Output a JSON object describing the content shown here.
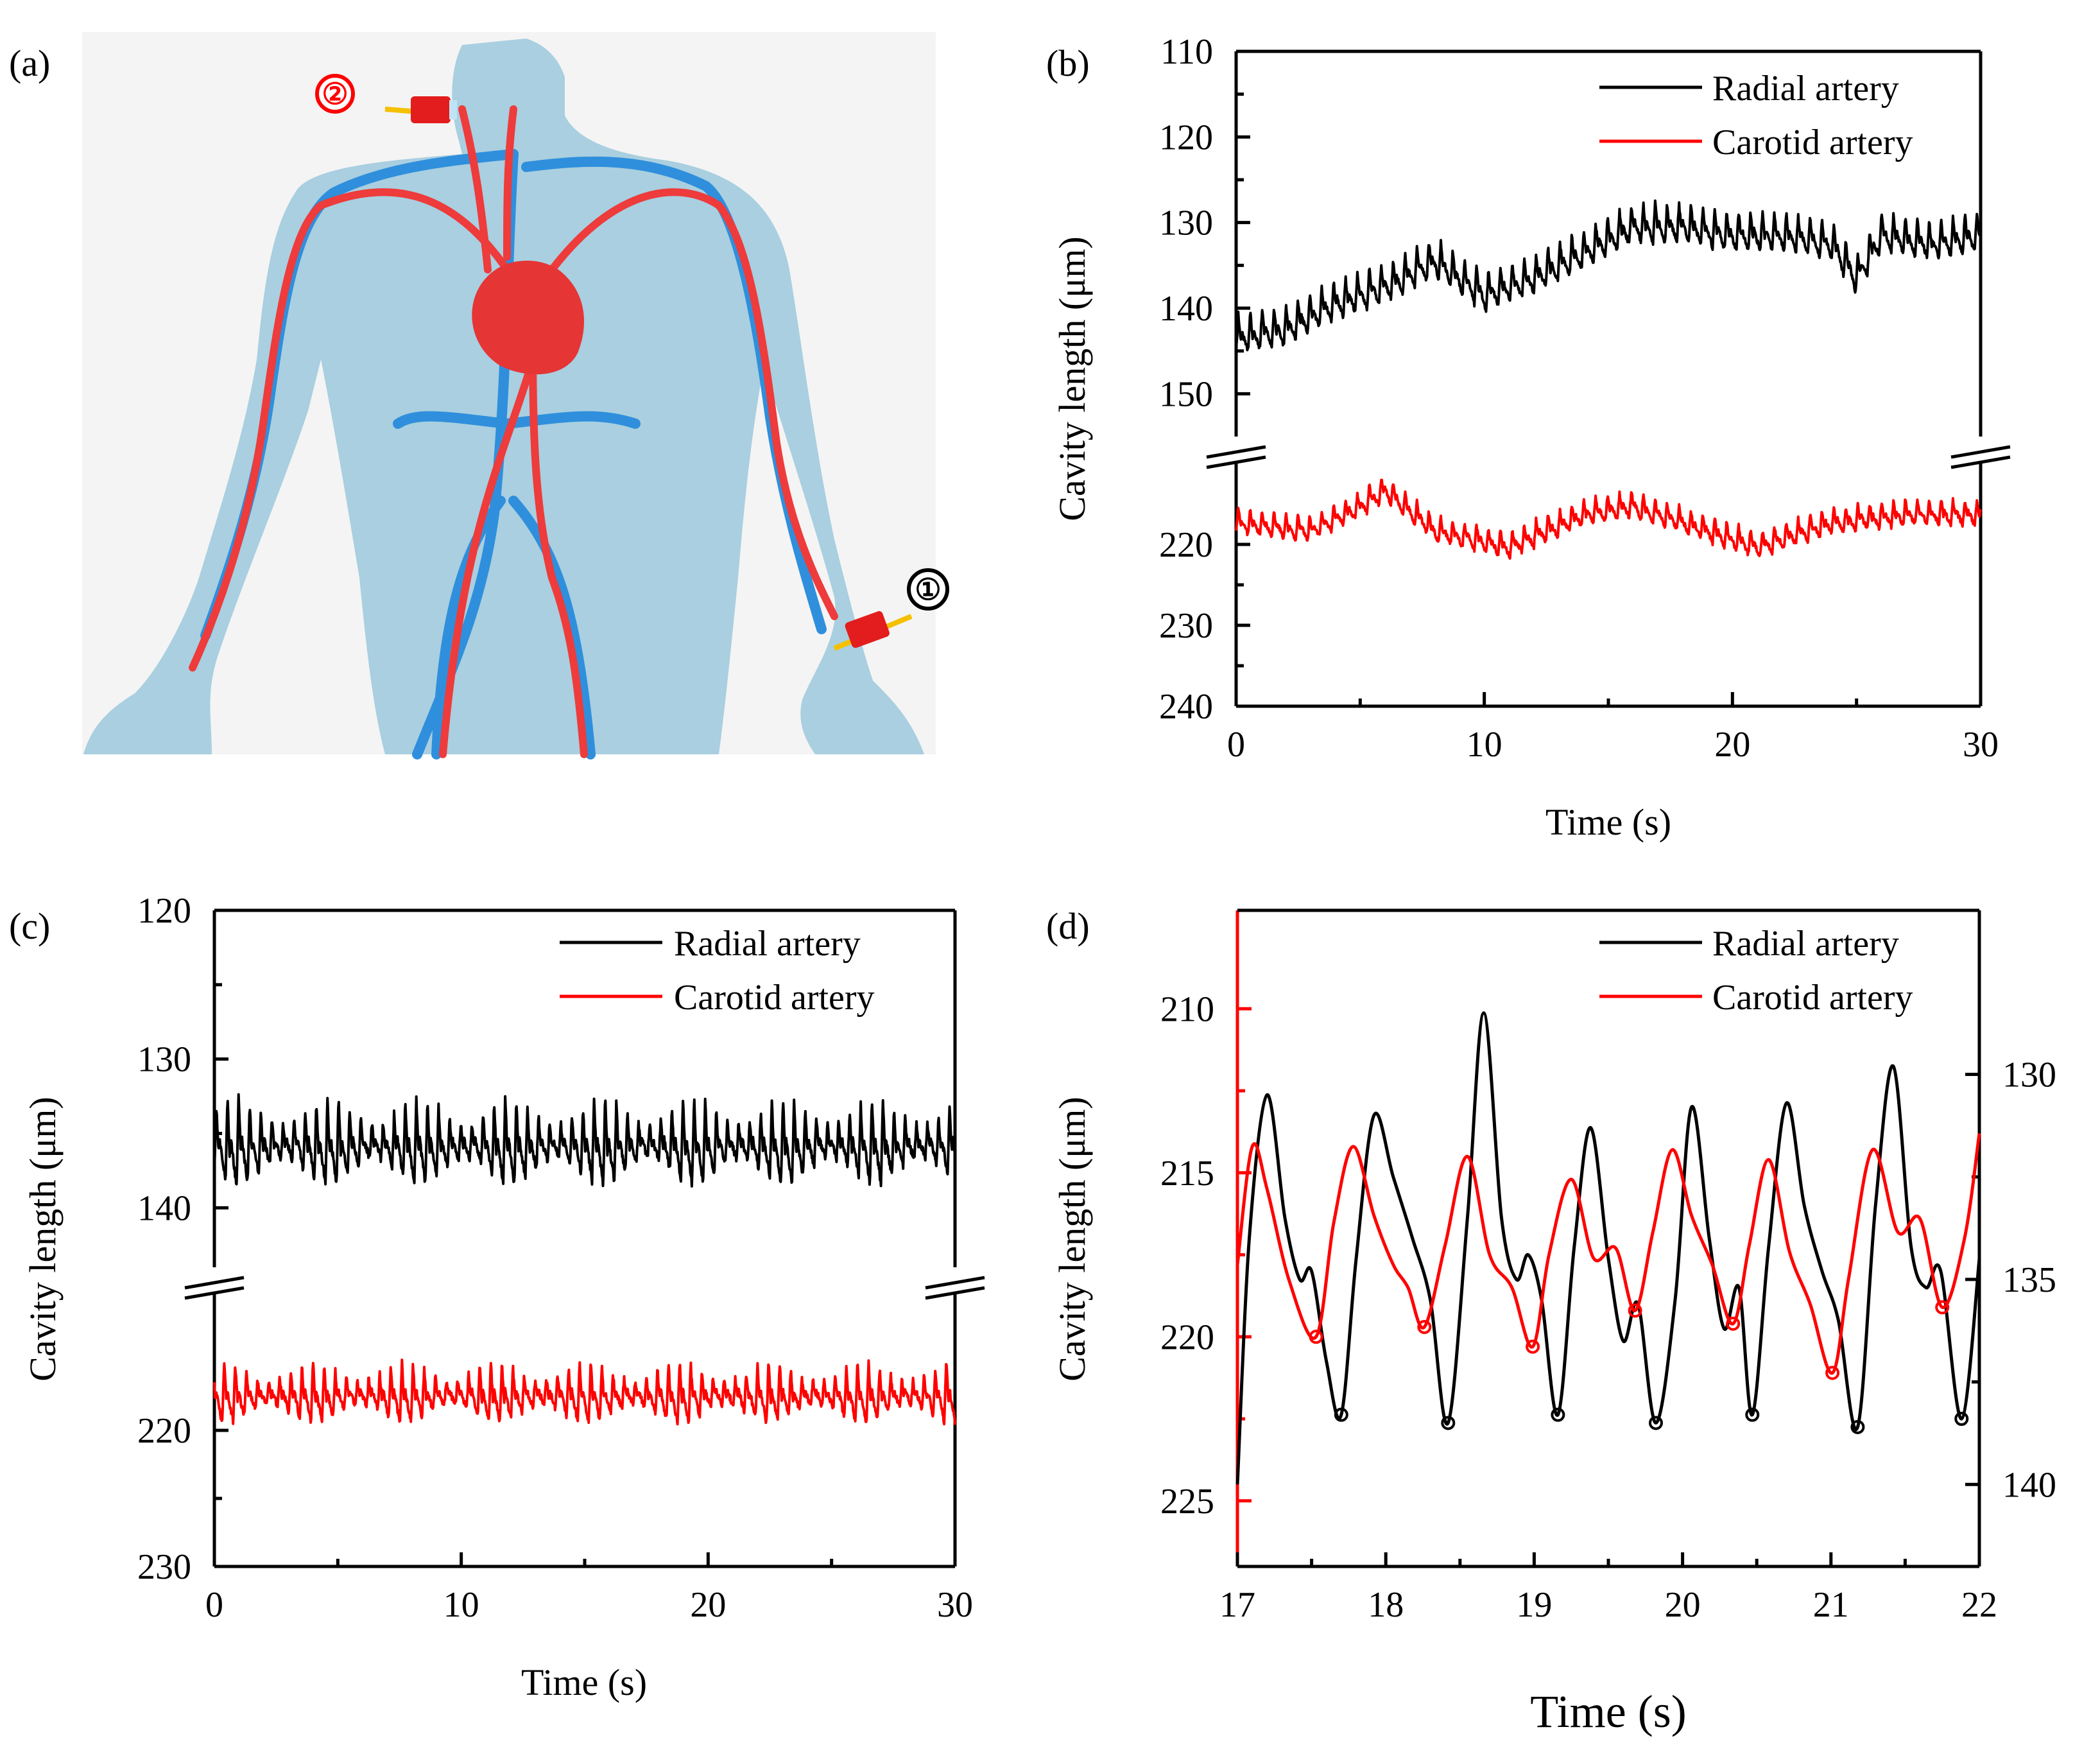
{
  "figure": {
    "panel_labels": [
      "(a)",
      "(b)",
      "(c)",
      "(d)"
    ],
    "illustration": {
      "marker_1": "①",
      "marker_2": "②",
      "colors": {
        "body": "#a9cfe0",
        "artery": "#ee3b3b",
        "vein": "#2f8fdc",
        "sensor": "#e31d1d",
        "fiber": "#f5c000"
      }
    },
    "colors": {
      "radial": "#000000",
      "carotid": "#ff0000"
    }
  },
  "chart_data": [
    {
      "panel": "(b)",
      "type": "line",
      "xlabel": "Time (s)",
      "ylabel": "Cavity length (μm)",
      "xlim": [
        0,
        30
      ],
      "x_ticks": [
        0,
        10,
        20,
        30
      ],
      "y_axis_broken": true,
      "upper_ylim": [
        110,
        155
      ],
      "upper_ticks": [
        110,
        120,
        130,
        140,
        150
      ],
      "lower_ylim": [
        210,
        240
      ],
      "lower_ticks": [
        220,
        230,
        240
      ],
      "y_inverted": true,
      "legend": [
        "Radial artery",
        "Carotid artery"
      ],
      "series": [
        {
          "name": "Radial artery",
          "color": "#000000",
          "period_s": 0.48,
          "amplitude": 2.3,
          "baseline": {
            "t": [
              0,
              2,
              4,
              6,
              8,
              10,
              12,
              14,
              16,
              18,
              20,
              22,
              24,
              25,
              26,
              28,
              30
            ],
            "v": [
              143,
              142,
              139,
              137,
              134,
              138,
              136,
              133,
              130,
              130,
              131,
              131,
              132,
              136,
              131,
              132,
              131
            ]
          }
        },
        {
          "name": "Carotid artery",
          "color": "#ff0000",
          "period_s": 0.48,
          "amplitude": 1.6,
          "baseline": {
            "t": [
              0,
              3,
              5,
              6,
              8,
              11,
              14,
              16,
              18,
              21,
              24,
              27,
              30
            ],
            "v": [
              217,
              218,
              215,
              213,
              218,
              220,
              216,
              215,
              217,
              220,
              217,
              216,
              216
            ]
          }
        }
      ]
    },
    {
      "panel": "(c)",
      "type": "line",
      "xlabel": "Time (s)",
      "ylabel": "Cavity length (μm)",
      "xlim": [
        0,
        30
      ],
      "x_ticks": [
        0,
        10,
        20,
        30
      ],
      "y_axis_broken": true,
      "upper_ylim": [
        120,
        144
      ],
      "upper_ticks": [
        120,
        130,
        140
      ],
      "lower_ylim": [
        210,
        230
      ],
      "lower_ticks": [
        220,
        230
      ],
      "y_inverted": true,
      "legend": [
        "Radial artery",
        "Carotid artery"
      ],
      "series": [
        {
          "name": "Radial artery",
          "color": "#000000",
          "period_s": 0.45,
          "center": 135.5,
          "amplitude": 2.6
        },
        {
          "name": "Carotid artery",
          "color": "#ff0000",
          "period_s": 0.45,
          "center": 217.2,
          "amplitude": 2.0
        }
      ]
    },
    {
      "panel": "(d)",
      "type": "line",
      "xlabel": "Time (s)",
      "ylabel": "Cavity length (μm)",
      "xlim": [
        17,
        22
      ],
      "x_ticks": [
        17,
        18,
        19,
        20,
        21,
        22
      ],
      "y_left_ylim": [
        207,
        227
      ],
      "y_left_ticks": [
        210,
        215,
        220,
        225
      ],
      "y_left_color": "#ff0000",
      "y_right_ylim": [
        126,
        142
      ],
      "y_right_ticks": [
        130,
        135,
        140
      ],
      "y_inverted": false,
      "legend": [
        "Radial artery",
        "Carotid artery"
      ],
      "series": [
        {
          "name": "Radial artery",
          "axis": "right",
          "color": "#000000",
          "t": [
            17.0,
            17.08,
            17.2,
            17.32,
            17.42,
            17.5,
            17.6,
            17.7,
            17.8,
            17.92,
            18.05,
            18.18,
            18.3,
            18.42,
            18.55,
            18.66,
            18.78,
            18.88,
            18.96,
            19.05,
            19.16,
            19.27,
            19.38,
            19.5,
            19.6,
            19.7,
            19.82,
            19.95,
            20.06,
            20.18,
            20.28,
            20.38,
            20.47,
            20.58,
            20.7,
            20.82,
            20.94,
            21.05,
            21.18,
            21.3,
            21.42,
            21.54,
            21.64,
            21.74,
            21.88,
            22.0
          ],
          "v": [
            140,
            134,
            130.5,
            133.5,
            135,
            134.8,
            137,
            138.3,
            134.5,
            131,
            132.5,
            134,
            135.5,
            138.5,
            133.5,
            128.5,
            133.5,
            135,
            134.4,
            135.5,
            138.3,
            134.2,
            131.3,
            134.5,
            136.5,
            135.6,
            138.5,
            135.5,
            130.8,
            134,
            136.2,
            135.2,
            138.3,
            134.2,
            130.7,
            133.2,
            134.8,
            136,
            138.6,
            133.2,
            129.8,
            134.2,
            135.2,
            134.8,
            138.4,
            134.5
          ]
        },
        {
          "name": "Carotid artery",
          "axis": "left",
          "color": "#ff0000",
          "t": [
            17.0,
            17.1,
            17.2,
            17.35,
            17.53,
            17.65,
            17.78,
            17.92,
            18.05,
            18.15,
            18.26,
            18.4,
            18.55,
            18.7,
            18.85,
            18.99,
            19.1,
            19.25,
            19.4,
            19.55,
            19.68,
            19.8,
            19.93,
            20.06,
            20.2,
            20.34,
            20.45,
            20.58,
            20.72,
            20.86,
            21.01,
            21.12,
            21.28,
            21.45,
            21.6,
            21.75,
            21.9,
            22.0
          ],
          "v": [
            217.8,
            214.2,
            215.5,
            218.3,
            220,
            216.5,
            214.2,
            216.3,
            217.8,
            218.5,
            219.7,
            217.2,
            214.5,
            217.5,
            218.5,
            220.3,
            217.5,
            215.2,
            217.6,
            217.3,
            219.2,
            216.8,
            214.3,
            216.3,
            217.8,
            219.6,
            217.2,
            214.6,
            217.4,
            219,
            221.1,
            218.2,
            214.3,
            216.8,
            216.4,
            219.1,
            217,
            213.8
          ]
        }
      ],
      "troughs": {
        "black": [
          [
            17.7,
            138.3
          ],
          [
            18.42,
            138.5
          ],
          [
            19.16,
            138.3
          ],
          [
            19.82,
            138.5
          ],
          [
            20.47,
            138.3
          ],
          [
            21.18,
            138.6
          ],
          [
            21.88,
            138.4
          ]
        ],
        "red": [
          [
            17.53,
            220
          ],
          [
            18.26,
            219.7
          ],
          [
            18.99,
            220.3
          ],
          [
            19.68,
            219.2
          ],
          [
            20.34,
            219.6
          ],
          [
            21.01,
            221.1
          ],
          [
            21.75,
            219.1
          ]
        ]
      }
    }
  ]
}
